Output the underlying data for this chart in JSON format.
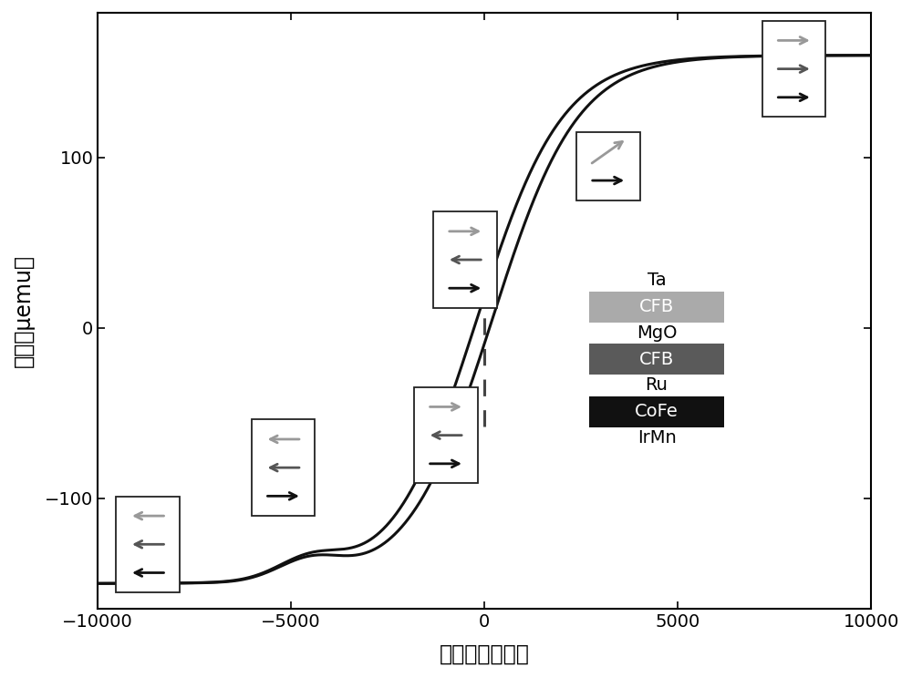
{
  "xlabel": "磁场（奥斯特）",
  "ylabel": "磁矩（μemu）",
  "xlim": [
    -10000,
    10000
  ],
  "ylim": [
    -165,
    185
  ],
  "xticks": [
    -10000,
    -5000,
    0,
    5000,
    10000
  ],
  "yticks": [
    -100,
    0,
    100
  ],
  "background_color": "#ffffff",
  "curve_color": "#111111",
  "layer_items": [
    {
      "label": "Ta",
      "bg": null,
      "fc": "#000000"
    },
    {
      "label": "CFB",
      "bg": "#aaaaaa",
      "fc": "#ffffff"
    },
    {
      "label": "MgO",
      "bg": null,
      "fc": "#000000"
    },
    {
      "label": "CFB",
      "bg": "#5a5a5a",
      "fc": "#ffffff"
    },
    {
      "label": "Ru",
      "bg": null,
      "fc": "#000000"
    },
    {
      "label": "CoFe",
      "bg": "#111111",
      "fc": "#ffffff"
    },
    {
      "label": "IrMn",
      "bg": null,
      "fc": "#000000"
    }
  ]
}
